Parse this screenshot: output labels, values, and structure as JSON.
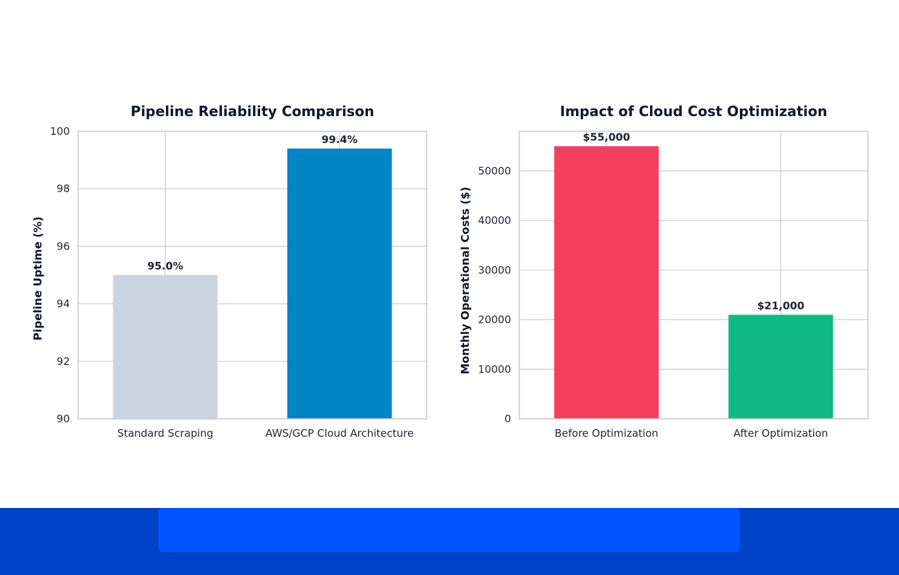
{
  "colors": {
    "grid": "#cccccc",
    "axis": "#cccccc",
    "text": "#1f2330",
    "title": "#0f1729",
    "footer_dark": "#0041c7",
    "footer_band": "#0055ff"
  },
  "chart_data": [
    {
      "type": "bar",
      "title": "Pipeline Reliability Comparison",
      "xlabel": "",
      "ylabel": "Pipeline Uptime (%)",
      "categories": [
        "Standard Scraping",
        "AWS/GCP Cloud Architecture"
      ],
      "values": [
        95.0,
        99.4
      ],
      "value_labels": [
        "95.0%",
        "99.4%"
      ],
      "bar_colors": [
        "#cbd5e1",
        "#0284c7"
      ],
      "ylim": [
        90,
        100
      ],
      "yticks": [
        90,
        92,
        94,
        96,
        98,
        100
      ],
      "ytick_labels": [
        "90",
        "92",
        "94",
        "96",
        "98",
        "100"
      ],
      "grid": true
    },
    {
      "type": "bar",
      "title": "Impact of Cloud Cost Optimization",
      "xlabel": "",
      "ylabel": "Monthly Operational Costs ($)",
      "categories": [
        "Before Optimization",
        "After Optimization"
      ],
      "values": [
        55000,
        21000
      ],
      "value_labels": [
        "$55,000",
        "$21,000"
      ],
      "bar_colors": [
        "#f43f5e",
        "#10b981"
      ],
      "ylim": [
        0,
        58000
      ],
      "yticks": [
        0,
        10000,
        20000,
        30000,
        40000,
        50000
      ],
      "ytick_labels": [
        "0",
        "10000",
        "20000",
        "30000",
        "40000",
        "50000"
      ],
      "grid": true
    }
  ]
}
